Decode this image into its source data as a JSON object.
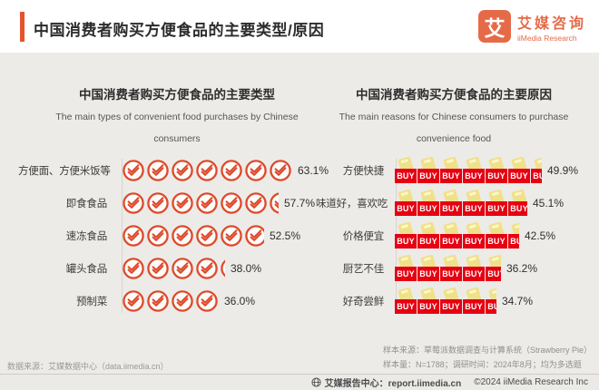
{
  "header": {
    "title": "中国消费者购买方便食品的主要类型/原因",
    "logo": {
      "symbol": "艾",
      "name_cn": "艾媒咨询",
      "name_en": "iiMedia Research"
    }
  },
  "labels": {
    "buy": "BUY"
  },
  "chart_data": [
    {
      "type": "bar",
      "variant": "pictograph",
      "icon": "check-circle",
      "title": "中国消费者购买方便食品的主要类型",
      "subtitle": "The main types of convenient food purchases by Chinese consumers",
      "unit_percent_per_icon": 9.0,
      "categories": [
        "方便面、方便米饭等",
        "即食食品",
        "速冻食品",
        "罐头食品",
        "预制菜"
      ],
      "values": [
        63.1,
        57.7,
        52.5,
        38.0,
        36.0
      ],
      "value_labels": [
        "63.1%",
        "57.7%",
        "52.5%",
        "38.0%",
        "36.0%"
      ],
      "xlim": [
        0,
        70
      ],
      "legend": "none",
      "grid": "off"
    },
    {
      "type": "bar",
      "variant": "pictograph",
      "icon": "buy-tag",
      "title": "中国消费者购买方便食品的主要原因",
      "subtitle": "The main reasons for Chinese consumers to purchase convenience food",
      "unit_percent_per_icon": 7.7,
      "categories": [
        "方便快捷",
        "味道好，喜欢吃",
        "价格便宜",
        "厨艺不佳",
        "好奇尝鲜"
      ],
      "values": [
        49.9,
        45.1,
        42.5,
        36.2,
        34.7
      ],
      "value_labels": [
        "49.9%",
        "45.1%",
        "42.5%",
        "36.2%",
        "34.7%"
      ],
      "xlim": [
        0,
        55
      ],
      "legend": "none",
      "grid": "off"
    }
  ],
  "footnotes": {
    "data_source": "数据来源：艾媒数据中心（data.iimedia.cn）",
    "sample_source": "样本来源：草莓派数据调查与计算系统（Strawberry Pie）",
    "sample_info": "样本量：N=1788；调研时间：2024年8月；均为多选题"
  },
  "footer": {
    "report_center": "艾媒报告中心：report.iimedia.cn",
    "copyright": "©2024  iiMedia Research Inc"
  },
  "colors": {
    "accent_orange": "#e4552f",
    "logo_orange": "#e56b48",
    "check_icon": "#dd4a2c",
    "buy_red": "#e60012",
    "buy_tag_yellow": "#efe189",
    "page_bg": "#edebe8",
    "header_bg": "#ffffff"
  }
}
